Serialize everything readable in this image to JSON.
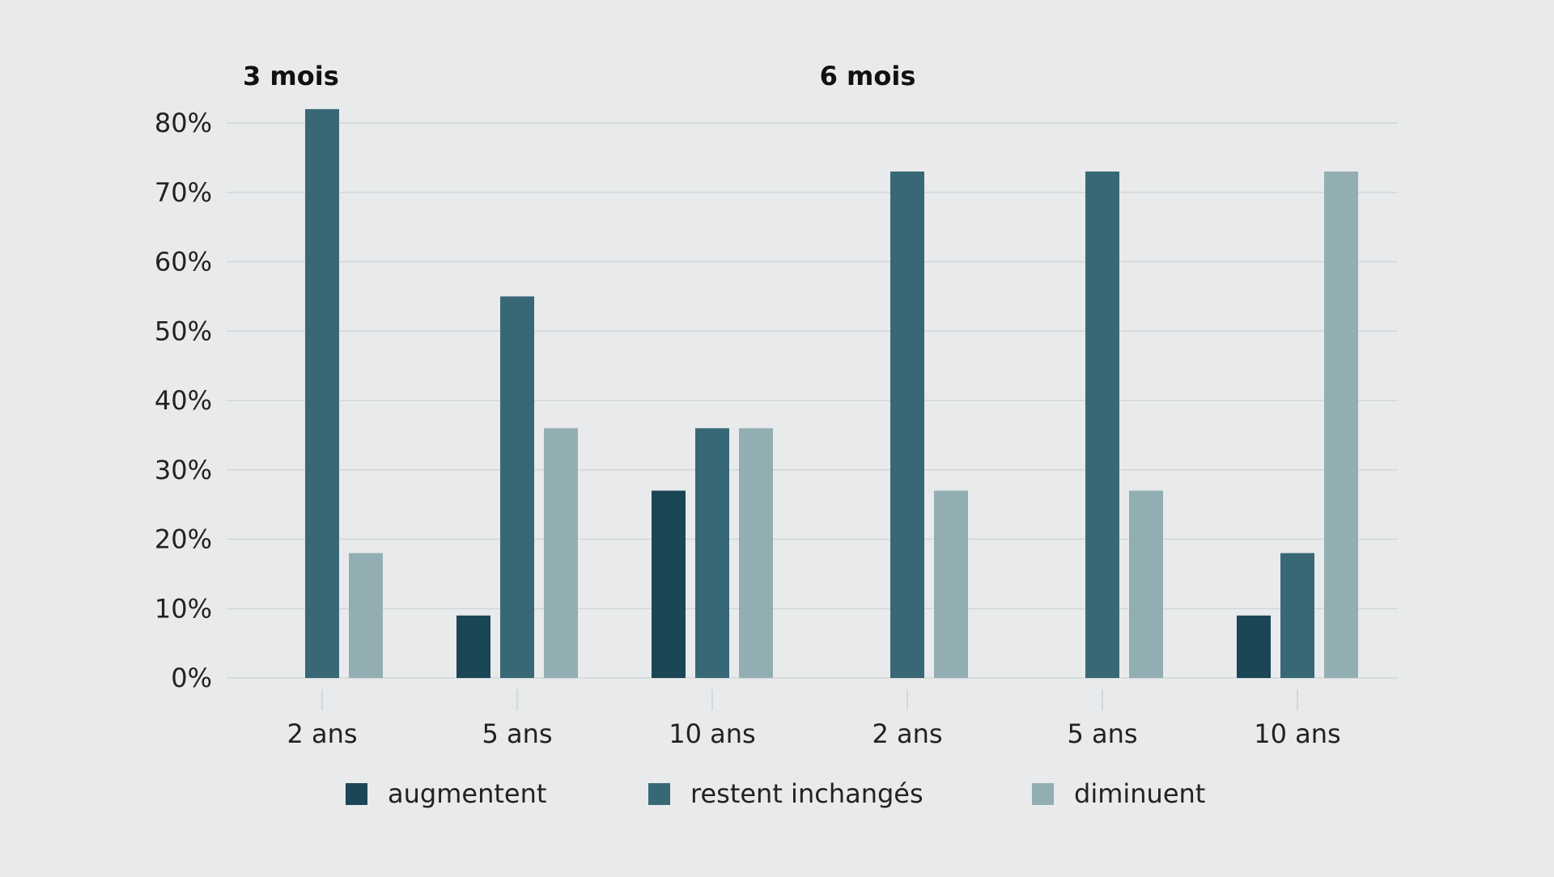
{
  "chart_data": {
    "type": "bar",
    "group_titles": [
      "3 mois",
      "6 mois"
    ],
    "categories": [
      "2 ans",
      "5 ans",
      "10 ans",
      "2 ans",
      "5 ans",
      "10 ans"
    ],
    "ylim": [
      0,
      80
    ],
    "yticks": [
      0,
      10,
      20,
      30,
      40,
      50,
      60,
      70,
      80
    ],
    "ytick_labels": [
      "0%",
      "10%",
      "20%",
      "30%",
      "40%",
      "50%",
      "60%",
      "70%",
      "80%"
    ],
    "grid": true,
    "legend_position": "bottom",
    "series": [
      {
        "name": "augmentent",
        "color": "#1b4655",
        "values": [
          0,
          9,
          27,
          0,
          0,
          9
        ]
      },
      {
        "name": "restent inchangés",
        "color": "#386876",
        "values": [
          82,
          55,
          36,
          73,
          73,
          18
        ]
      },
      {
        "name": "diminuent",
        "color": "#93aeb2",
        "values": [
          18,
          36,
          36,
          27,
          27,
          73
        ]
      }
    ]
  }
}
